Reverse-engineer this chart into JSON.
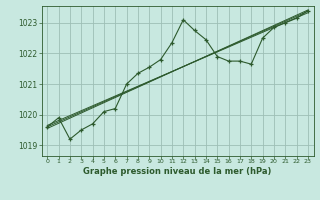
{
  "title": "Graphe pression niveau de la mer (hPa)",
  "bg_color": "#c8e8e0",
  "plot_bg_color": "#c8e8e0",
  "grid_color": "#9dbfb5",
  "line_color": "#2d5a2d",
  "text_color": "#2d5a2d",
  "xlim": [
    -0.5,
    23.5
  ],
  "ylim": [
    1018.65,
    1023.55
  ],
  "yticks": [
    1019,
    1020,
    1021,
    1022,
    1023
  ],
  "xticks": [
    0,
    1,
    2,
    3,
    4,
    5,
    6,
    7,
    8,
    9,
    10,
    11,
    12,
    13,
    14,
    15,
    16,
    17,
    18,
    19,
    20,
    21,
    22,
    23
  ],
  "main_x": [
    0,
    1,
    2,
    3,
    4,
    5,
    6,
    7,
    8,
    9,
    10,
    11,
    12,
    13,
    14,
    15,
    16,
    17,
    18,
    19,
    20,
    21,
    22,
    23
  ],
  "main_y": [
    1019.6,
    1019.9,
    1019.2,
    1019.5,
    1019.7,
    1020.1,
    1020.2,
    1021.0,
    1021.35,
    1021.55,
    1021.8,
    1022.35,
    1023.1,
    1022.75,
    1022.45,
    1021.9,
    1021.75,
    1021.75,
    1021.65,
    1022.5,
    1022.85,
    1023.0,
    1023.15,
    1023.4
  ],
  "trend1_x": [
    0,
    23
  ],
  "trend1_y": [
    1019.55,
    1023.42
  ],
  "trend2_x": [
    0,
    23
  ],
  "trend2_y": [
    1019.6,
    1023.38
  ],
  "trend3_x": [
    0,
    23
  ],
  "trend3_y": [
    1019.65,
    1023.33
  ]
}
